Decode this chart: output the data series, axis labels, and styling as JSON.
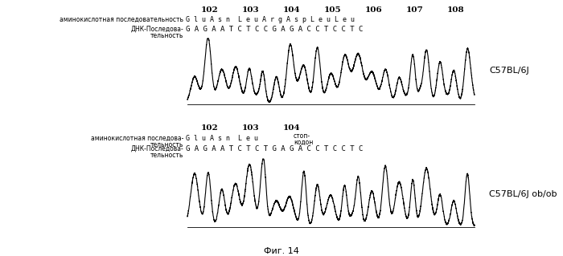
{
  "title": "Фиг. 14",
  "panel1": {
    "position_labels": [
      "102",
      "103",
      "104",
      "105",
      "106",
      "107",
      "108"
    ],
    "aa_sequence": "G l u A s n  L e u A r g A s p L e u L e u",
    "dna_sequence": "G A G A A T C T C C G A G A C C T C C T C",
    "strain_label": "C57BL/6J"
  },
  "panel2": {
    "position_labels": [
      "102",
      "103",
      "104"
    ],
    "aa_sequence": "G l u A s n  L e u",
    "stop_label1": "стоп-",
    "stop_label2": "кодон",
    "dna_sequence": "G A G A A T C T C T G A G A C C T C C T C",
    "strain_label": "C57BL/6J ob/ob"
  },
  "bg_color": "#ffffff",
  "trace_color": "#000000"
}
